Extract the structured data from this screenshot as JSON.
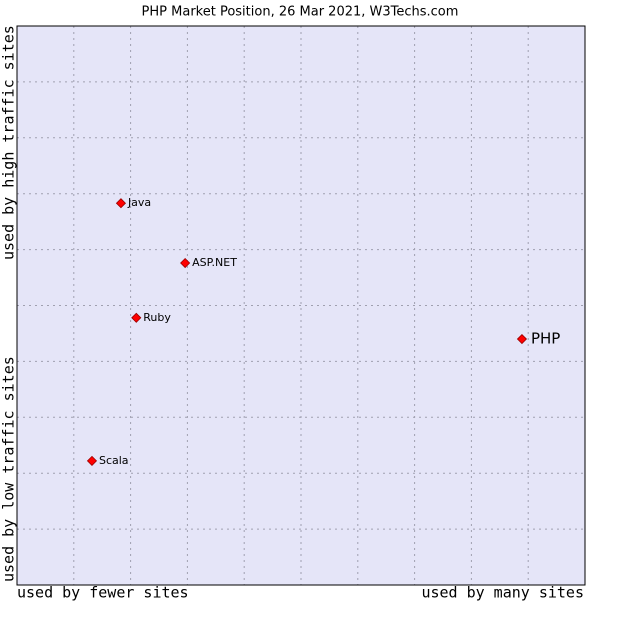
{
  "chart_data": {
    "type": "scatter",
    "title": "PHP Market Position, 26 Mar 2021, W3Techs.com",
    "x_axis_labels": [
      "used by fewer sites",
      "used by many sites"
    ],
    "y_axis_labels": [
      "used by low traffic sites",
      "used by high traffic sites"
    ],
    "labels": [
      "PHP",
      "Java",
      "ASP.NET",
      "Ruby",
      "Scala"
    ],
    "x": [
      8.89,
      1.83,
      2.96,
      2.1,
      1.32
    ],
    "values": [
      4.4,
      6.83,
      5.76,
      4.78,
      2.22
    ],
    "color": "#ff0000",
    "xlim": [
      0,
      10
    ],
    "ylim": [
      0,
      10
    ],
    "xticks": [
      1,
      2,
      3,
      4,
      5,
      6,
      7,
      8,
      9
    ],
    "yticks": [
      1,
      2,
      3,
      4,
      5,
      6,
      7,
      8,
      9
    ],
    "grid": true
  }
}
